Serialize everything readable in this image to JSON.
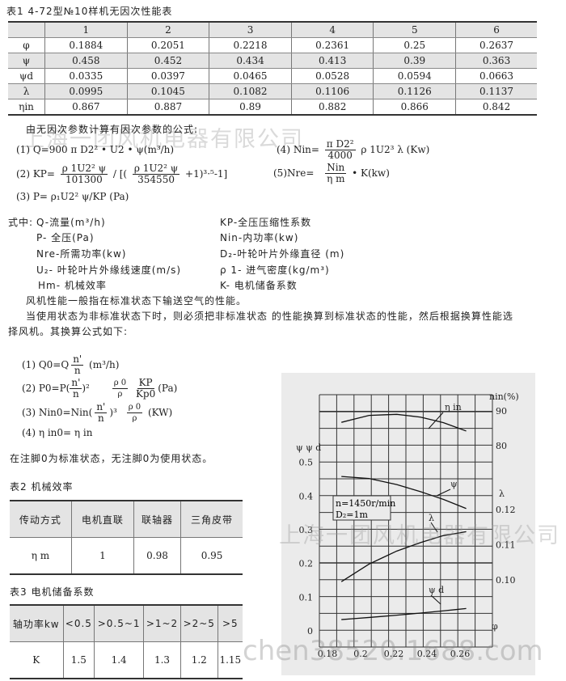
{
  "table1": {
    "title": "表1 4-72型№10样机无因次性能表",
    "headers": [
      "",
      "1",
      "2",
      "3",
      "4",
      "5",
      "6"
    ],
    "rows": [
      [
        "φ",
        "0.1884",
        "0.2051",
        "0.2218",
        "0.2361",
        "0.25",
        "0.2637"
      ],
      [
        "ψ",
        "0.458",
        "0.452",
        "0.434",
        "0.413",
        "0.39",
        "0.363"
      ],
      [
        "ψd",
        "0.0335",
        "0.0397",
        "0.0465",
        "0.0528",
        "0.0594",
        "0.0663"
      ],
      [
        "λ",
        "0.0995",
        "0.1045",
        "0.1082",
        "0.1106",
        "0.1126",
        "0.1137"
      ],
      [
        "ηin",
        "0.867",
        "0.887",
        "0.89",
        "0.882",
        "0.866",
        "0.842"
      ]
    ]
  },
  "formulas": {
    "intro": "由无因次参数计算有因次参数的公式:",
    "f1": "(1) Q=900 π D2² • U2 •  ψ(m³/h)",
    "f2_lhs": "(2) KP=",
    "f2_n1": "ρ 1U2² ψ",
    "f2_d1": "101300",
    "f2_mid": "/ [(",
    "f2_n2": "ρ 1U2² ψ",
    "f2_d2": "354550",
    "f2_tail": "+1)³·⁵-1]",
    "f3": "(3) P= ρ₁U2² ψ/KP    (Pa)",
    "f4_lhs": "(4) Nin=",
    "f4_num": "π D2²",
    "f4_den": "4000",
    "f4_tail": "ρ 1U2³ λ (Kw)",
    "f5_lhs": "(5)Nre=",
    "f5_num": "Nin",
    "f5_den": "η m",
    "f5_tail": "• K(kw)"
  },
  "legend": {
    "prefix": "式中:",
    "left": [
      "Q-流量(m³/h)",
      "P- 全压(Pa)",
      "Nre-所需功率(kw)",
      "U₂- 叶轮叶片外缘线速度(m/s)",
      "Hm- 机械效率"
    ],
    "right": [
      "KP-全压压缩性系数",
      "Nin-内功率(kw)",
      "D₂-叶轮叶片外缘直径 (m)",
      "ρ 1- 进气密度(kg/m³)",
      "K- 电机储备系数"
    ]
  },
  "para1": "风机性能一般指在标准状态下输送空气的性能。",
  "para2a": "当使用状态为非标准状态下时，则必须把非标准状态 的性能换算到标准状态的性能，然后根据换算性能选",
  "para2b": "择风机。其换算公式如下:",
  "conv": {
    "c1_lhs": "(1) Q0=Q",
    "c1_num": "n'",
    "c1_den": "n",
    "c1_tail": "(m³/h)",
    "c2_lhs": "(2) P0=P(",
    "c2_num": "n'",
    "c2_den": "n",
    "c2_mid": ")²",
    "c2_n2": "ρ 0",
    "c2_d2": "ρ",
    "c2_n3": "KP",
    "c2_d3": "Kp0",
    "c2_tail": "(Pa)",
    "c3_lhs": "(3) Nin0=Nin(",
    "c3_num": "n'",
    "c3_den": "n",
    "c3_mid": ")³",
    "c3_n2": "ρ 0",
    "c3_d2": "ρ",
    "c3_tail": "(KW)",
    "c4": "(4)  η in0= η in"
  },
  "note": "在注脚0为标准状态，无注脚0为使用状态。",
  "table2": {
    "title": "表2    机械效率",
    "headers": [
      "传动方式",
      "电机直联",
      "联轴器",
      "三角皮带"
    ],
    "row": [
      "η m",
      "1",
      "0.98",
      "0.95"
    ]
  },
  "table3": {
    "title": "表3    电机储备系数",
    "headers": [
      "轴功率kw",
      "<0.5",
      ">0.5~1",
      ">1~2",
      ">2~5",
      ">5"
    ],
    "row": [
      "K",
      "1.5",
      "1.4",
      "1.3",
      "1.2",
      "1.15"
    ]
  },
  "watermarks": [
    "上海一团风机电器有限公司",
    "上海一团风机电器有限公司",
    "chen38520.1688.com"
  ],
  "chart_data": {
    "type": "line",
    "x": [
      0.1884,
      0.2051,
      0.2218,
      0.2361,
      0.25,
      0.2637
    ],
    "series": [
      {
        "name": "ψ",
        "axis": "left",
        "values": [
          0.458,
          0.452,
          0.434,
          0.413,
          0.39,
          0.363
        ]
      },
      {
        "name": "ψ d",
        "axis": "left",
        "values": [
          0.0335,
          0.0397,
          0.0465,
          0.0528,
          0.0594,
          0.0663
        ]
      },
      {
        "name": "λ",
        "axis": "right-lambda",
        "values": [
          0.0995,
          0.1045,
          0.1082,
          0.1106,
          0.1126,
          0.1137
        ]
      },
      {
        "name": "η in",
        "axis": "right-percent",
        "values": [
          86.7,
          88.7,
          89,
          88.2,
          86.6,
          84.2
        ]
      }
    ],
    "xticks": [
      "0.18",
      "0.2",
      "0.22",
      "0.24",
      "0.26"
    ],
    "xlabel": "φ",
    "left_label": "ψ  ψ d",
    "left_ticks": [
      "0",
      "0.1",
      "0.2",
      "0.3",
      "0.4",
      "0.5"
    ],
    "right_percent_label": "nin(%)",
    "right_percent_ticks": [
      "90",
      "80"
    ],
    "right_lambda_label": "λ",
    "right_lambda_ticks": [
      "0.12",
      "0.11",
      "0.10"
    ],
    "annotation": [
      "n=1450r/min",
      "D₂=1m"
    ],
    "grid": true
  }
}
